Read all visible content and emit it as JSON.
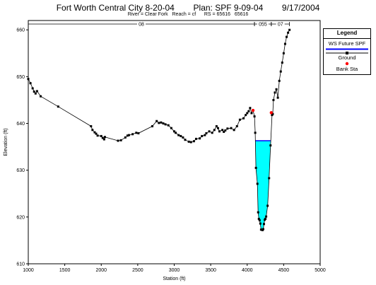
{
  "chart_data": {
    "type": "cross-section",
    "title_parts": [
      "Fort Worth Central City 8-20-04",
      "Plan: SPF 9-09-04",
      "9/17/2004"
    ],
    "subtitle": "River = Clear Fork   Reach = cf      RS = 65616   65616",
    "xlabel": "Station (ft)",
    "ylabel": "Elevation (ft)",
    "xlim": [
      1000,
      5000
    ],
    "ylim": [
      610,
      662
    ],
    "xticks": [
      1000,
      1500,
      2000,
      2500,
      3000,
      3500,
      4000,
      4500,
      5000
    ],
    "yticks": [
      610,
      620,
      630,
      640,
      650,
      660
    ],
    "manning_regions": [
      {
        "label": "08",
        "from": 1000,
        "to": 4100
      },
      {
        "label": "055",
        "from": 4100,
        "to": 4330
      },
      {
        "label": "07",
        "from": 4330,
        "to": 4580
      }
    ],
    "ground": {
      "x": [
        1000,
        1030,
        1060,
        1080,
        1100,
        1120,
        1170,
        1410,
        1860,
        1880,
        1910,
        1930,
        1950,
        2000,
        2020,
        2040,
        2050,
        2230,
        2270,
        2330,
        2360,
        2380,
        2430,
        2480,
        2510,
        2700,
        2760,
        2790,
        2820,
        2850,
        2880,
        2920,
        2960,
        3000,
        3020,
        3060,
        3090,
        3120,
        3150,
        3200,
        3230,
        3270,
        3300,
        3350,
        3380,
        3420,
        3440,
        3480,
        3520,
        3550,
        3580,
        3600,
        3620,
        3660,
        3680,
        3700,
        3730,
        3780,
        3820,
        3860,
        3900,
        3950,
        3980,
        4000,
        4020,
        4040,
        4060,
        4080,
        4100,
        4110,
        4120,
        4140,
        4150,
        4160,
        4170,
        4180,
        4190,
        4200,
        4210,
        4220,
        4230,
        4240,
        4250,
        4260,
        4280,
        4300,
        4320,
        4340,
        4350,
        4360,
        4380,
        4400,
        4420,
        4440,
        4460,
        4480,
        4500,
        4520,
        4540,
        4560,
        4580
      ],
      "y": [
        649.5,
        648.6,
        647.5,
        646.8,
        646.4,
        646.9,
        645.8,
        643.6,
        639.4,
        638.6,
        638.1,
        637.8,
        637.4,
        637.3,
        636.9,
        636.6,
        637.1,
        636.3,
        636.4,
        637.0,
        637.4,
        637.5,
        637.7,
        638.0,
        637.9,
        639.4,
        640.5,
        640.1,
        640.2,
        640.0,
        639.8,
        639.6,
        639.0,
        638.3,
        638.0,
        637.5,
        637.3,
        637.0,
        636.5,
        636.1,
        636.0,
        636.2,
        636.7,
        636.8,
        637.3,
        637.5,
        637.9,
        638.3,
        638.0,
        638.6,
        639.4,
        639.0,
        638.3,
        638.6,
        638.2,
        638.5,
        638.9,
        639.0,
        638.6,
        639.4,
        640.8,
        641.1,
        641.8,
        642.2,
        642.6,
        643.3,
        642.2,
        642.8,
        641.5,
        638.0,
        630.5,
        627.1,
        621.0,
        619.6,
        619.3,
        618.6,
        617.3,
        617.3,
        617.2,
        617.4,
        618.5,
        619.4,
        619.6,
        620.1,
        622.4,
        628.3,
        635.3,
        641.8,
        642.0,
        645.0,
        646.6,
        647.3,
        645.5,
        649.1,
        651.1,
        653.0,
        655.0,
        657.0,
        658.5,
        659.4,
        660.0
      ]
    },
    "bank_stations": [
      {
        "x": 4080,
        "y": 642.8
      },
      {
        "x": 4330,
        "y": 642.3
      }
    ],
    "water_surface": 636.3,
    "legend": {
      "title": "Legend",
      "items": [
        "WS Future SPF",
        "Ground",
        "Bank Sta"
      ]
    },
    "colors": {
      "water_fill": "#00ffff",
      "water_line": "#0000ff",
      "ground": "#000000",
      "bank": "#ff0000"
    }
  }
}
